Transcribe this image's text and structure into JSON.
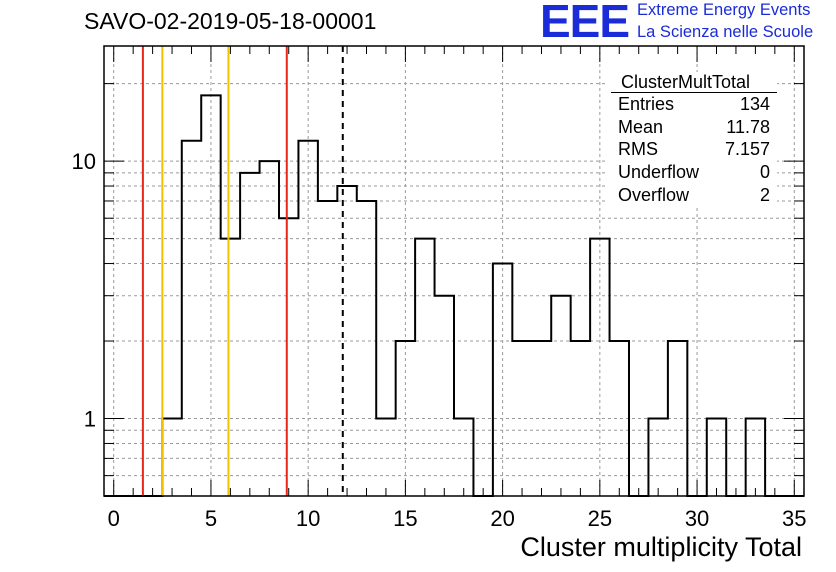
{
  "header": {
    "title": "SAVO-02-2019-05-18-00001"
  },
  "logo": {
    "mark": "EEE",
    "line1": "Extreme Energy Events",
    "line2": "La Scienza nelle Scuole",
    "color": "#1a2bd8"
  },
  "stats": {
    "title": "ClusterMultTotal",
    "rows": [
      {
        "key": "Entries",
        "value": "134"
      },
      {
        "key": "Mean",
        "value": "11.78"
      },
      {
        "key": "RMS",
        "value": "7.157"
      },
      {
        "key": "Underflow",
        "value": "0"
      },
      {
        "key": "Overflow",
        "value": "2"
      }
    ]
  },
  "chart_data": {
    "type": "histogram",
    "xlabel": "Cluster multiplicity Total",
    "ylabel": "",
    "log_y": true,
    "xlim": [
      -0.5,
      35.5
    ],
    "ylim": [
      0.5,
      28
    ],
    "grid": true,
    "bin_edges_start": -0.5,
    "bin_width": 1,
    "values": [
      0,
      0,
      0,
      1,
      12,
      18,
      5,
      9,
      10,
      6,
      12,
      7,
      8,
      7,
      1,
      2,
      5,
      3,
      1,
      0,
      4,
      2,
      2,
      3,
      2,
      5,
      2,
      0,
      1,
      2,
      0,
      1,
      0,
      1,
      0,
      0
    ],
    "x_ticks": [
      0,
      5,
      10,
      15,
      20,
      25,
      30,
      35
    ],
    "x_tick_labels": [
      "0",
      "5",
      "10",
      "15",
      "20",
      "25",
      "30",
      "35"
    ],
    "y_ticks": [
      1,
      10
    ],
    "y_tick_labels": [
      "1",
      "10"
    ],
    "vertical_lines": [
      {
        "x": 1.5,
        "color": "#e8261c",
        "style": "solid"
      },
      {
        "x": 2.5,
        "color": "#f2c200",
        "style": "solid"
      },
      {
        "x": 5.9,
        "color": "#f2c200",
        "style": "solid"
      },
      {
        "x": 8.9,
        "color": "#e8261c",
        "style": "solid"
      },
      {
        "x": 11.78,
        "color": "#000000",
        "style": "dashed"
      }
    ]
  }
}
